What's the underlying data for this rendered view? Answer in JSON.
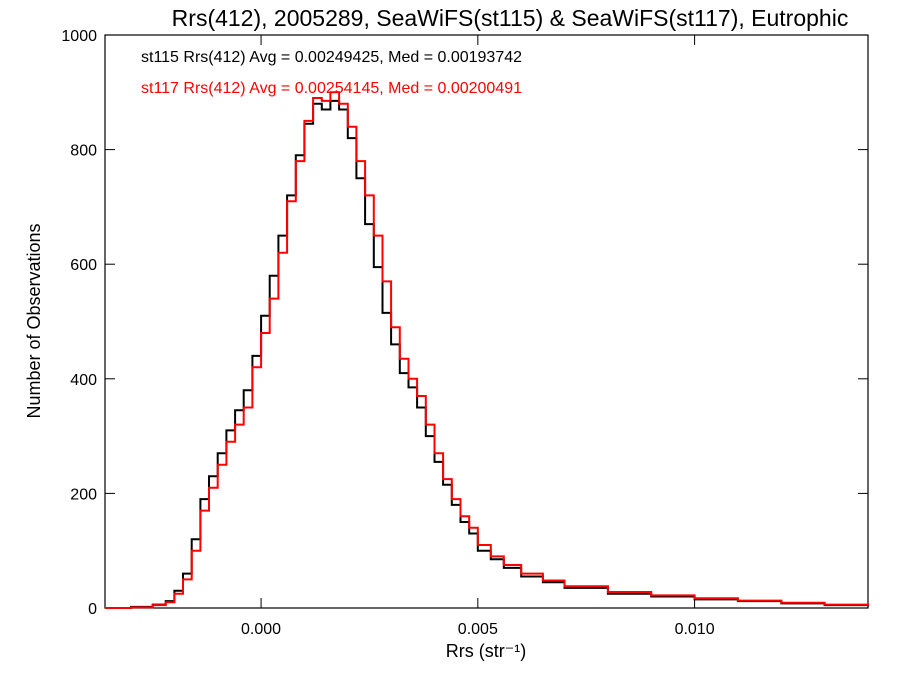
{
  "chart_data": {
    "type": "line",
    "title": "Rrs(412), 2005289, SeaWiFS(st115) & SeaWiFS(st117), Eutrophic",
    "xlabel": "Rrs (str⁻¹)",
    "ylabel": "Number of Observations",
    "xlim": [
      -0.0036,
      0.014
    ],
    "ylim": [
      0,
      1000
    ],
    "x_ticks": [
      0.0,
      0.005,
      0.01
    ],
    "x_tick_labels": [
      "0.000",
      "0.005",
      "0.010"
    ],
    "y_ticks": [
      0,
      200,
      400,
      600,
      800,
      1000
    ],
    "y_tick_labels": [
      "0",
      "200",
      "400",
      "600",
      "800",
      "1000"
    ],
    "grid": false,
    "legend": "top-left annotations",
    "annotations": [
      {
        "text": "st115 Rrs(412) Avg = 0.00249425, Med = 0.00193742",
        "color": "#000000"
      },
      {
        "text": "st117 Rrs(412) Avg = 0.00254145, Med = 0.00200491",
        "color": "#ff0000"
      }
    ],
    "series": [
      {
        "name": "st115",
        "color": "#000000",
        "style": "step",
        "x": [
          -0.0036,
          -0.003,
          -0.0025,
          -0.0022,
          -0.002,
          -0.0018,
          -0.0016,
          -0.0014,
          -0.0012,
          -0.001,
          -0.0008,
          -0.0006,
          -0.0004,
          -0.0002,
          0.0,
          0.0002,
          0.0004,
          0.0006,
          0.0008,
          0.001,
          0.0012,
          0.0014,
          0.0016,
          0.0018,
          0.002,
          0.0022,
          0.0024,
          0.0026,
          0.0028,
          0.003,
          0.0032,
          0.0034,
          0.0036,
          0.0038,
          0.004,
          0.0042,
          0.0044,
          0.0046,
          0.0048,
          0.005,
          0.0053,
          0.0056,
          0.006,
          0.0065,
          0.007,
          0.008,
          0.009,
          0.01,
          0.011,
          0.012,
          0.013,
          0.014
        ],
        "y": [
          0,
          2,
          6,
          12,
          30,
          60,
          120,
          190,
          230,
          270,
          310,
          345,
          380,
          440,
          510,
          580,
          650,
          720,
          790,
          845,
          880,
          870,
          885,
          870,
          820,
          750,
          670,
          595,
          515,
          460,
          410,
          385,
          350,
          300,
          255,
          215,
          180,
          150,
          130,
          100,
          85,
          70,
          55,
          45,
          35,
          25,
          20,
          15,
          12,
          8,
          5,
          3
        ]
      },
      {
        "name": "st117",
        "color": "#ff0000",
        "style": "step",
        "x": [
          -0.0036,
          -0.003,
          -0.0025,
          -0.0022,
          -0.002,
          -0.0018,
          -0.0016,
          -0.0014,
          -0.0012,
          -0.001,
          -0.0008,
          -0.0006,
          -0.0004,
          -0.0002,
          0.0,
          0.0002,
          0.0004,
          0.0006,
          0.0008,
          0.001,
          0.0012,
          0.0014,
          0.0016,
          0.0018,
          0.002,
          0.0022,
          0.0024,
          0.0026,
          0.0028,
          0.003,
          0.0032,
          0.0034,
          0.0036,
          0.0038,
          0.004,
          0.0042,
          0.0044,
          0.0046,
          0.0048,
          0.005,
          0.0053,
          0.0056,
          0.006,
          0.0065,
          0.007,
          0.008,
          0.009,
          0.01,
          0.011,
          0.012,
          0.013,
          0.014
        ],
        "y": [
          0,
          1,
          5,
          10,
          25,
          50,
          100,
          170,
          210,
          250,
          290,
          320,
          350,
          420,
          480,
          540,
          620,
          710,
          780,
          850,
          890,
          885,
          900,
          880,
          840,
          780,
          720,
          650,
          570,
          490,
          435,
          400,
          370,
          320,
          270,
          225,
          190,
          160,
          140,
          110,
          90,
          75,
          60,
          48,
          38,
          28,
          22,
          17,
          13,
          9,
          6,
          4
        ]
      }
    ]
  }
}
